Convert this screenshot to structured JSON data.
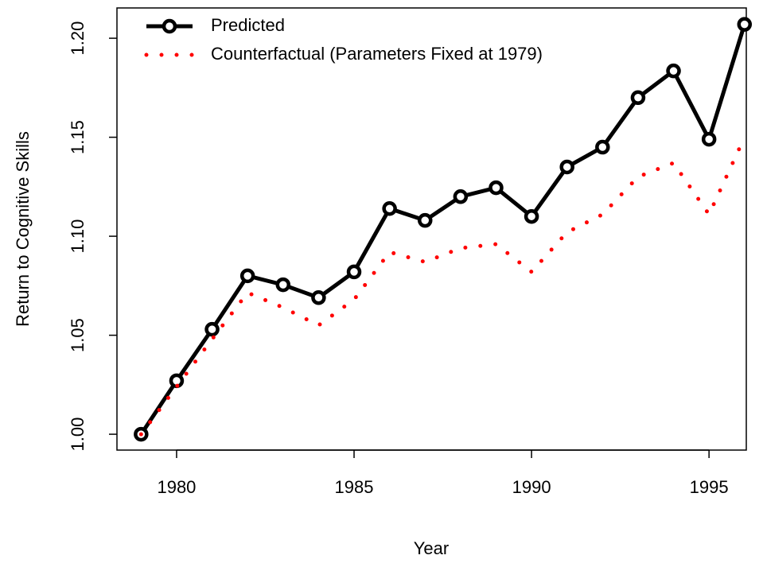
{
  "chart_data": {
    "type": "line",
    "x_label": "Year",
    "y_label": "Return to Cognitive Skills",
    "x": [
      1979,
      1980,
      1981,
      1982,
      1983,
      1984,
      1985,
      1986,
      1987,
      1988,
      1989,
      1990,
      1991,
      1992,
      1993,
      1994,
      1995,
      1996
    ],
    "series": [
      {
        "name": "Predicted",
        "color": "#000000",
        "style": "line-points",
        "values": [
          1.0,
          1.027,
          1.053,
          1.08,
          1.0755,
          1.069,
          1.082,
          1.114,
          1.108,
          1.12,
          1.1245,
          1.11,
          1.135,
          1.145,
          1.17,
          1.1835,
          1.149,
          1.207
        ]
      },
      {
        "name": "Counterfactual (Parameters Fixed at 1979)",
        "color": "#ff0000",
        "style": "dotted",
        "values": [
          1.0,
          1.024,
          1.048,
          1.0715,
          1.064,
          1.055,
          1.068,
          1.092,
          1.087,
          1.094,
          1.096,
          1.082,
          1.102,
          1.111,
          1.13,
          1.137,
          1.111,
          1.15
        ]
      }
    ],
    "xlim": [
      1978.32,
      1996.05
    ],
    "ylim": [
      0.992,
      1.2153
    ],
    "xticks": [
      1980,
      1985,
      1990,
      1995
    ],
    "yticks": [
      {
        "value": 1.0,
        "label": "1.00"
      },
      {
        "value": 1.05,
        "label": "1.05"
      },
      {
        "value": 1.1,
        "label": "1.10"
      },
      {
        "value": 1.15,
        "label": "1.15"
      },
      {
        "value": 1.2,
        "label": "1.20"
      }
    ],
    "legend": "top-left"
  }
}
